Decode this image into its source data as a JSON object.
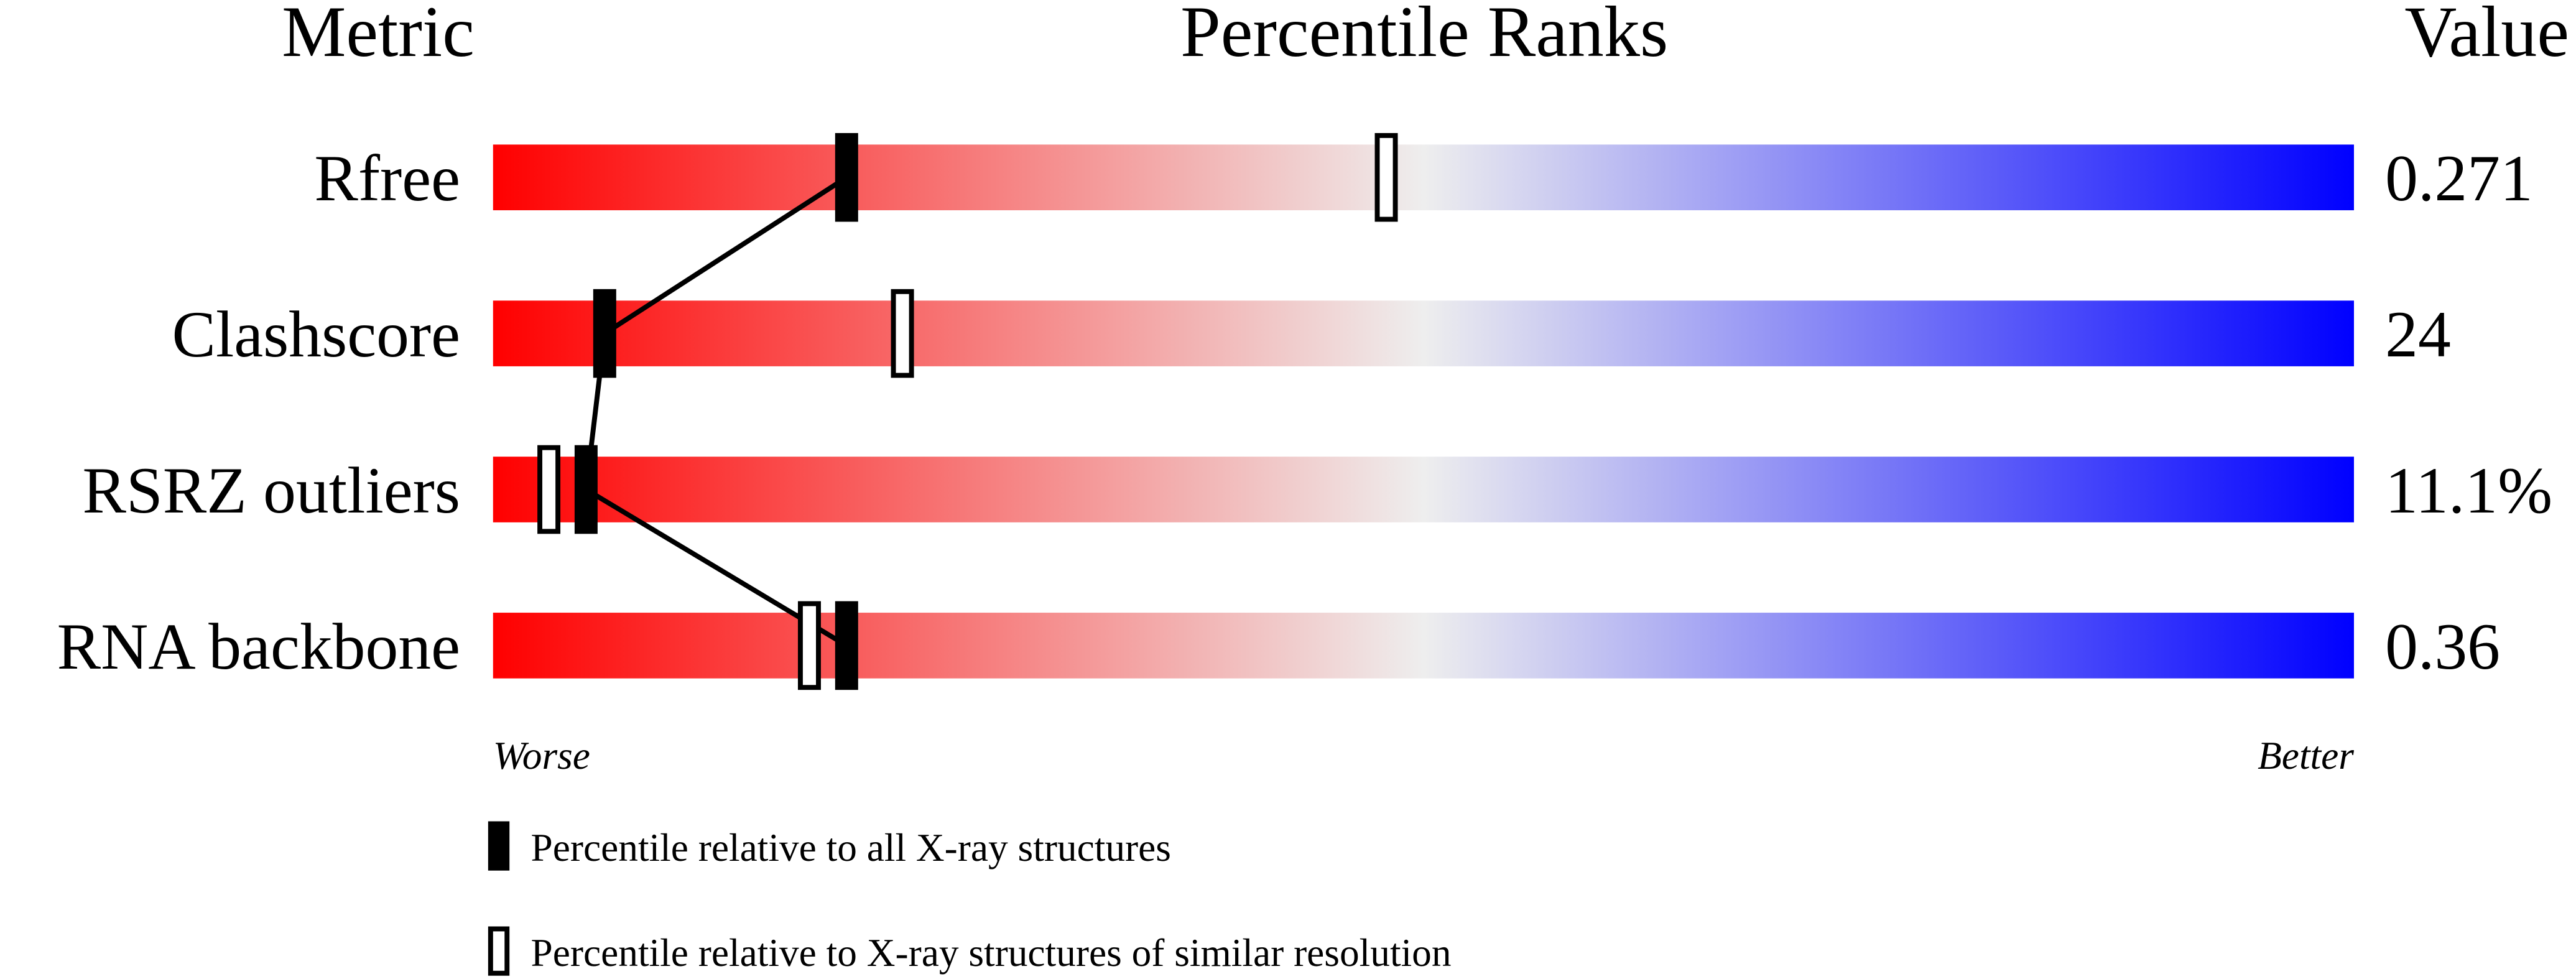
{
  "chart_data": {
    "type": "slider",
    "headers": {
      "metric": "Metric",
      "ranks": "Percentile Ranks",
      "value": "Value"
    },
    "categories": [
      "Rfree",
      "Clashscore",
      "RSRZ outliers",
      "RNA backbone"
    ],
    "metric_values": [
      "0.271",
      "24",
      "11.1%",
      "0.36"
    ],
    "xlim": [
      0,
      100
    ],
    "x_labels": {
      "low": "Worse",
      "high": "Better"
    },
    "series": [
      {
        "name": "Percentile relative to all X-ray structures",
        "style": "filled",
        "color": "#000000",
        "values": [
          19,
          6,
          5,
          19
        ]
      },
      {
        "name": "Percentile relative to X-ray structures of similar resolution",
        "style": "open",
        "color": "#000000",
        "values": [
          48,
          22,
          3,
          17
        ]
      }
    ],
    "gradient": [
      "#ff0000",
      "#eeeeee",
      "#0000ff"
    ]
  }
}
